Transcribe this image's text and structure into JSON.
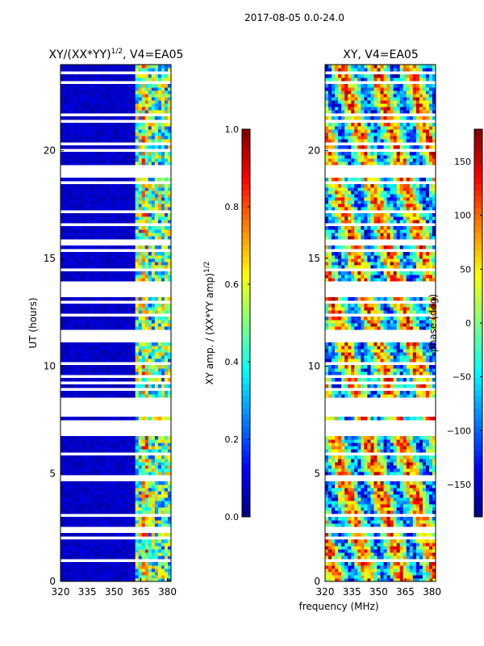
{
  "suptitle": "2017-08-05 0.0-24.0",
  "xlabel": "frequency (MHz)",
  "colormap": "jet",
  "chart_data": [
    {
      "type": "heatmap",
      "title": "XY/(XX*YY)",
      "title_exp": "1/2",
      "title_suffix": ", V4=EA05",
      "ylabel": "UT (hours)",
      "xlim": [
        320,
        382
      ],
      "ylim": [
        0,
        24
      ],
      "xticks": [
        320,
        335,
        350,
        365,
        380
      ],
      "yticks": [
        0,
        5,
        10,
        15,
        20
      ],
      "colorbar": {
        "label": "XY amp. / (XX*YY amp)",
        "label_exp": "1/2",
        "range": [
          0.0,
          1.0
        ],
        "ticks": [
          "0.0",
          "0.2",
          "0.4",
          "0.6",
          "0.8",
          "1.0"
        ]
      }
    },
    {
      "type": "heatmap",
      "title": "XY, V4=EA05",
      "xlim": [
        320,
        382
      ],
      "ylim": [
        0,
        24
      ],
      "xticks": [
        320,
        335,
        350,
        365,
        380
      ],
      "yticks": [
        0,
        5,
        10,
        15,
        20
      ],
      "colorbar": {
        "label": "phase (deg)",
        "range": [
          -180,
          180
        ],
        "ticks": [
          "−150",
          "−100",
          "−50",
          "0",
          "50",
          "100",
          "150"
        ]
      }
    }
  ]
}
